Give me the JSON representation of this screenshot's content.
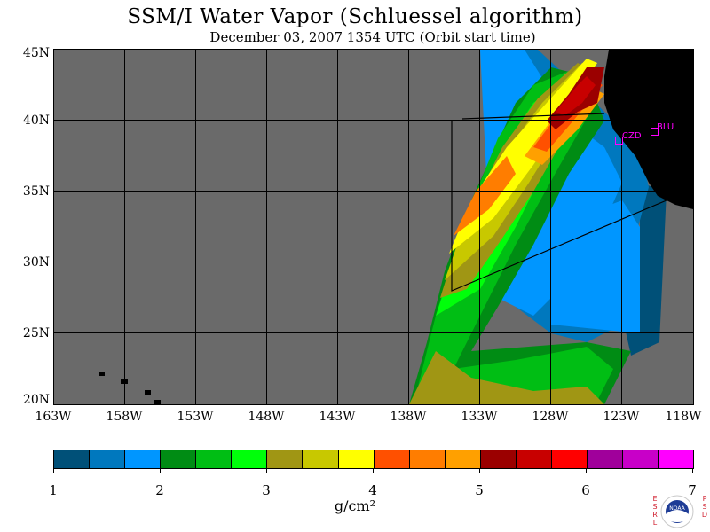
{
  "title": "SSM/I Water Vapor (Schluessel algorithm)",
  "subtitle": "December 03, 2007  1354 UTC  (Orbit start time)",
  "map": {
    "lat_labels": [
      "45N",
      "40N",
      "35N",
      "30N",
      "25N",
      "20N"
    ],
    "lon_labels": [
      "163W",
      "158W",
      "153W",
      "148W",
      "143W",
      "138W",
      "133W",
      "128W",
      "123W",
      "118W"
    ],
    "stations": [
      {
        "code": "CZD"
      },
      {
        "code": "BLU"
      }
    ],
    "colors": {
      "no_data": "#6a6a6a",
      "land": "#000000",
      "graticule": "#000000",
      "station": "#ff00ff"
    }
  },
  "colorbar": {
    "ticks": [
      "1",
      "2",
      "3",
      "4",
      "5",
      "6",
      "7"
    ],
    "units": "g/cm²",
    "colors": [
      "#005078",
      "#0078be",
      "#0096ff",
      "#008c14",
      "#00be14",
      "#00ff0a",
      "#a09614",
      "#c8c800",
      "#ffff00",
      "#ff5000",
      "#ff7d00",
      "#ffa000",
      "#9b0000",
      "#c80000",
      "#ff0000",
      "#a0009b",
      "#c800c8",
      "#ff00ff"
    ]
  },
  "logo": {
    "text": "NOAA",
    "left_letters": [
      "E",
      "S",
      "R",
      "L"
    ],
    "right_letters": [
      "P",
      "S",
      "D"
    ]
  }
}
